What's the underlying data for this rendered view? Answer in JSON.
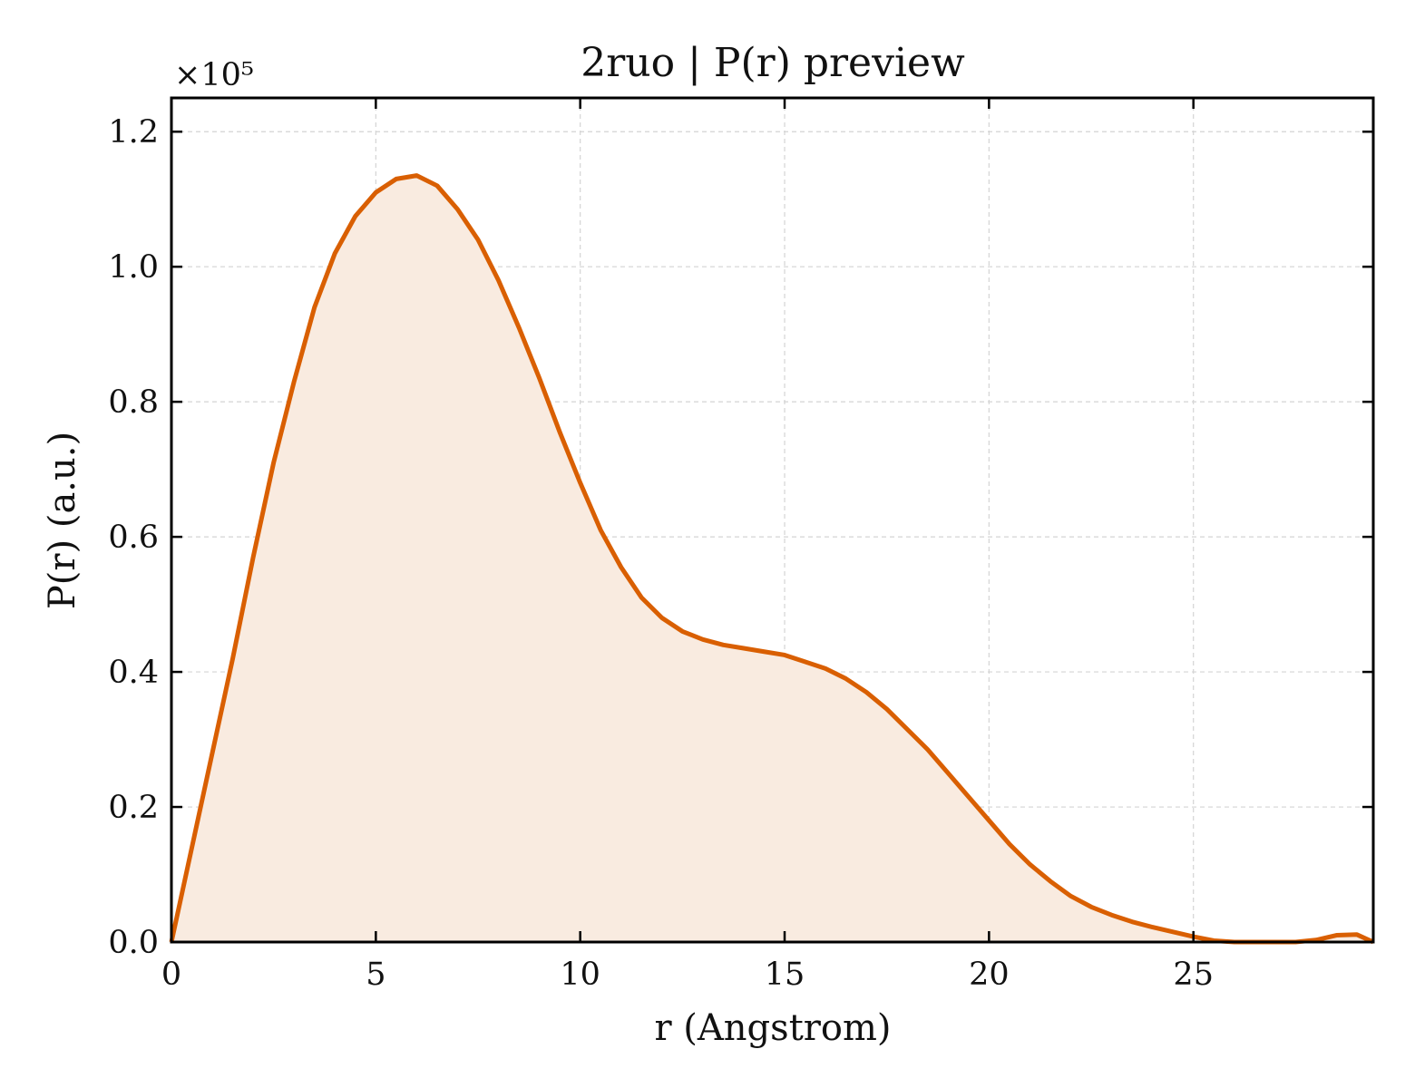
{
  "colors": {
    "line": "#d95f02",
    "fill": "#f9ebe0",
    "grid": "#d4d4d4",
    "axes": "#000000",
    "background": "#ffffff"
  },
  "chart_data": {
    "type": "area",
    "title": "2ruo | P(r) preview",
    "xlabel": "r (Angstrom)",
    "ylabel": "P(r) (a.u.)",
    "y_multiplier_label": "×10⁵",
    "xlim": [
      0,
      29.4
    ],
    "ylim": [
      0,
      1.25
    ],
    "y_scale_factor": 100000,
    "grid": true,
    "x_ticks": [
      0,
      5,
      10,
      15,
      20,
      25
    ],
    "x_tick_labels": [
      "0",
      "5",
      "10",
      "15",
      "20",
      "25"
    ],
    "y_ticks": [
      0.0,
      0.2,
      0.4,
      0.6,
      0.8,
      1.0,
      1.2
    ],
    "y_tick_labels": [
      "0.0",
      "0.2",
      "0.4",
      "0.6",
      "0.8",
      "1.0",
      "1.2"
    ],
    "series": [
      {
        "x": [
          0,
          0.5,
          1.0,
          1.5,
          2.0,
          2.5,
          3.0,
          3.5,
          4.0,
          4.5,
          5.0,
          5.5,
          6.0,
          6.5,
          7.0,
          7.5,
          8.0,
          8.5,
          9.0,
          9.5,
          10.0,
          10.5,
          11.0,
          11.5,
          12.0,
          12.5,
          13.0,
          13.5,
          14.0,
          14.5,
          15.0,
          15.5,
          16.0,
          16.5,
          17.0,
          17.5,
          18.0,
          18.5,
          19.0,
          19.5,
          20.0,
          20.5,
          21.0,
          21.5,
          22.0,
          22.5,
          23.0,
          23.5,
          24.0,
          24.5,
          25.0,
          25.5,
          26.0,
          26.5,
          27.0,
          27.5,
          28.0,
          28.5,
          29.0,
          29.4
        ],
        "y": [
          0.0,
          0.14,
          0.28,
          0.42,
          0.57,
          0.71,
          0.83,
          0.94,
          1.02,
          1.075,
          1.11,
          1.13,
          1.135,
          1.12,
          1.085,
          1.04,
          0.98,
          0.91,
          0.835,
          0.755,
          0.68,
          0.61,
          0.555,
          0.51,
          0.48,
          0.46,
          0.448,
          0.44,
          0.435,
          0.43,
          0.425,
          0.415,
          0.405,
          0.39,
          0.37,
          0.345,
          0.315,
          0.285,
          0.25,
          0.215,
          0.18,
          0.145,
          0.115,
          0.09,
          0.068,
          0.052,
          0.04,
          0.03,
          0.022,
          0.015,
          0.008,
          0.002,
          0.0,
          0.0,
          0.0,
          0.0,
          0.003,
          0.01,
          0.011,
          0.0
        ]
      }
    ]
  }
}
